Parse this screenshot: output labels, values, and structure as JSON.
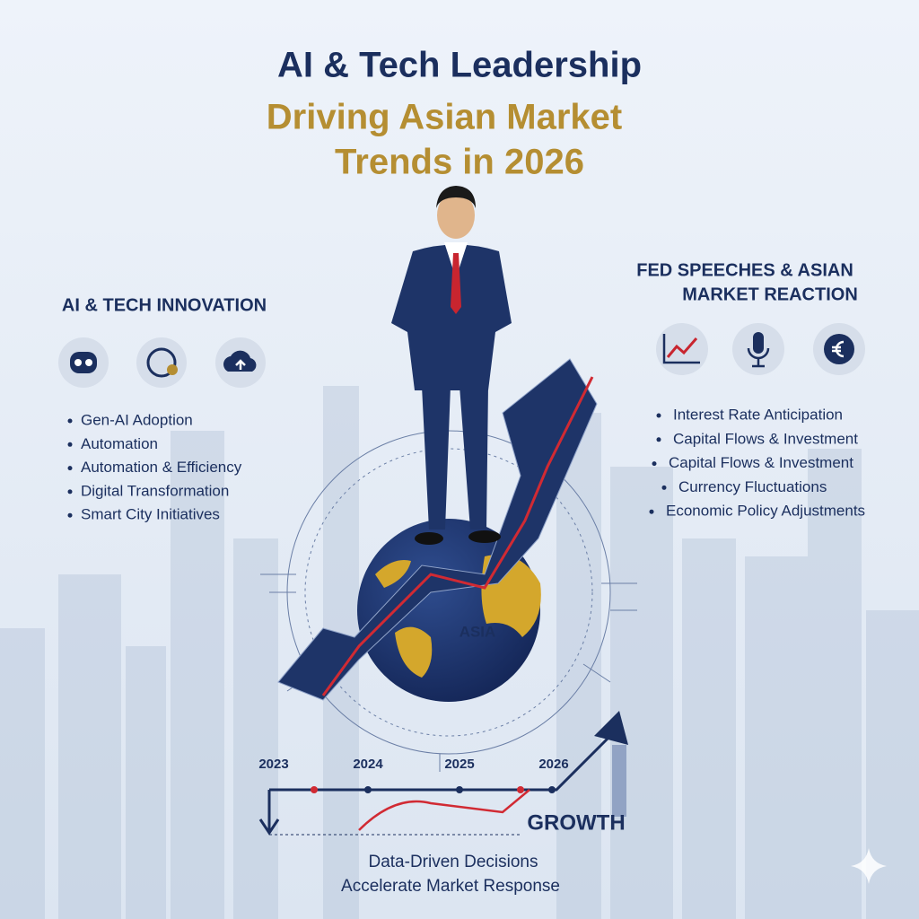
{
  "header": {
    "title_lines": [
      "AI & Tech Leadership",
      "Driving Asian Market",
      "Trends in 2026"
    ]
  },
  "left_panel": {
    "heading": "AI & TECH INNOVATION",
    "items": [
      "Gen-AI Adoption",
      "Automation",
      "Automation & Efficiency",
      "Digital Transformation",
      "Smart City Initiatives"
    ]
  },
  "right_panel": {
    "heading_lines": [
      "FED SPEECHES & ASIAN",
      "MARKET REACTION"
    ],
    "items": [
      "Interest Rate Anticipation",
      "Capital Flows & Investment",
      "Capital Flows & Investment",
      "Currency Fluctuations",
      "Economic Policy Adjustments"
    ]
  },
  "globe": {
    "label": "ASIA"
  },
  "timeline": {
    "years": [
      "2023",
      "2024",
      "2025",
      "2026"
    ],
    "label": "GROWTH"
  },
  "footer": {
    "lines": [
      "Data-Driven Decisions",
      "Accelerate Market Response"
    ]
  }
}
